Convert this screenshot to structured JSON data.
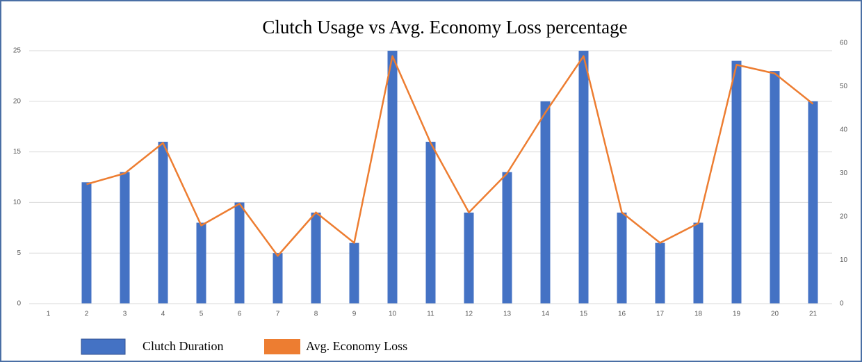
{
  "chart_data": {
    "type": "bar-line",
    "title": "Clutch Usage vs Avg. Economy Loss percentage",
    "categories": [
      "1",
      "2",
      "3",
      "4",
      "5",
      "6",
      "7",
      "8",
      "9",
      "10",
      "11",
      "12",
      "13",
      "14",
      "15",
      "16",
      "17",
      "18",
      "19",
      "20",
      "21"
    ],
    "series": [
      {
        "name": "Clutch Duration",
        "type": "bar",
        "color": "#4472c4",
        "values": [
          null,
          12,
          13,
          16,
          8,
          10,
          5,
          9,
          6,
          25,
          16,
          9,
          13,
          20,
          25,
          9,
          6,
          8,
          24,
          23,
          20
        ]
      },
      {
        "name": "Avg. Economy Loss",
        "type": "line",
        "axis": "y2",
        "color": "#ed7d31",
        "values": [
          null,
          27.5,
          30,
          37,
          18,
          23,
          11,
          21,
          14,
          57,
          37,
          21,
          30,
          44,
          57,
          21,
          14,
          18.5,
          55,
          53,
          46
        ]
      }
    ],
    "ylim": [
      0,
      25
    ],
    "yticks": [
      0,
      5,
      10,
      15,
      20,
      25
    ],
    "y2lim": [
      0,
      60
    ],
    "y2ticks": [
      0,
      10,
      20,
      30,
      40,
      50,
      60
    ],
    "grid": true,
    "legend": "bottom"
  }
}
